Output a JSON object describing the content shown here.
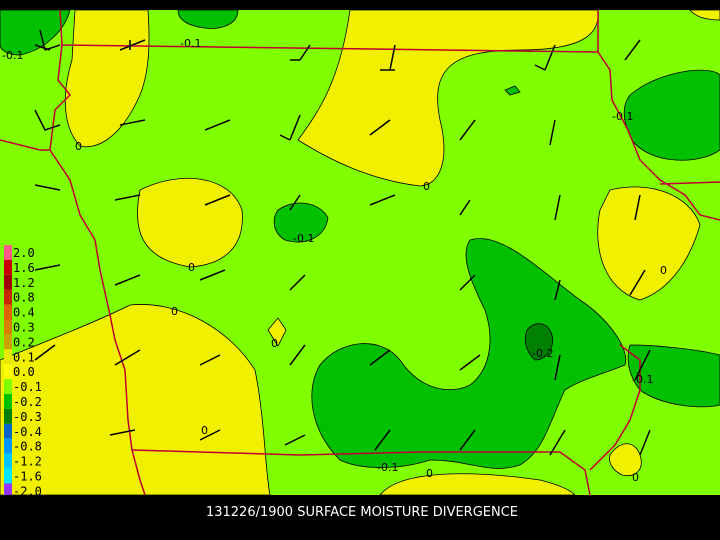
{
  "title": "131226/1900 SURFACE MOISTURE DIVERGENCE",
  "legend": [
    {
      "label": "2.0",
      "color": "#ff5c8a"
    },
    {
      "label": "1.6",
      "color": "#c80000"
    },
    {
      "label": "1.2",
      "color": "#a00000"
    },
    {
      "label": "0.8",
      "color": "#c82800"
    },
    {
      "label": "0.4",
      "color": "#e06400"
    },
    {
      "label": "0.3",
      "color": "#d88000"
    },
    {
      "label": "0.2",
      "color": "#c8a000"
    },
    {
      "label": "0.1",
      "color": "#e8e800"
    },
    {
      "label": "0.0",
      "color": "#ffff00"
    },
    {
      "label": "-0.1",
      "color": "#80ff00"
    },
    {
      "label": "-0.2",
      "color": "#00c000"
    },
    {
      "label": "-0.3",
      "color": "#008000"
    },
    {
      "label": "-0.4",
      "color": "#0064c8"
    },
    {
      "label": "-0.8",
      "color": "#0096ff"
    },
    {
      "label": "-1.2",
      "color": "#00c8ff"
    },
    {
      "label": "-1.6",
      "color": "#00e6ff"
    },
    {
      "label": "-2.0",
      "color": "#9632ff"
    }
  ],
  "contour_labels": [
    "-0.1",
    "-0.1",
    "0",
    "0",
    "-0.1",
    "-0.1",
    "0",
    "0",
    "0",
    "0",
    "-0.2",
    "-0.1",
    "0",
    "-0.1",
    "0",
    "0"
  ]
}
